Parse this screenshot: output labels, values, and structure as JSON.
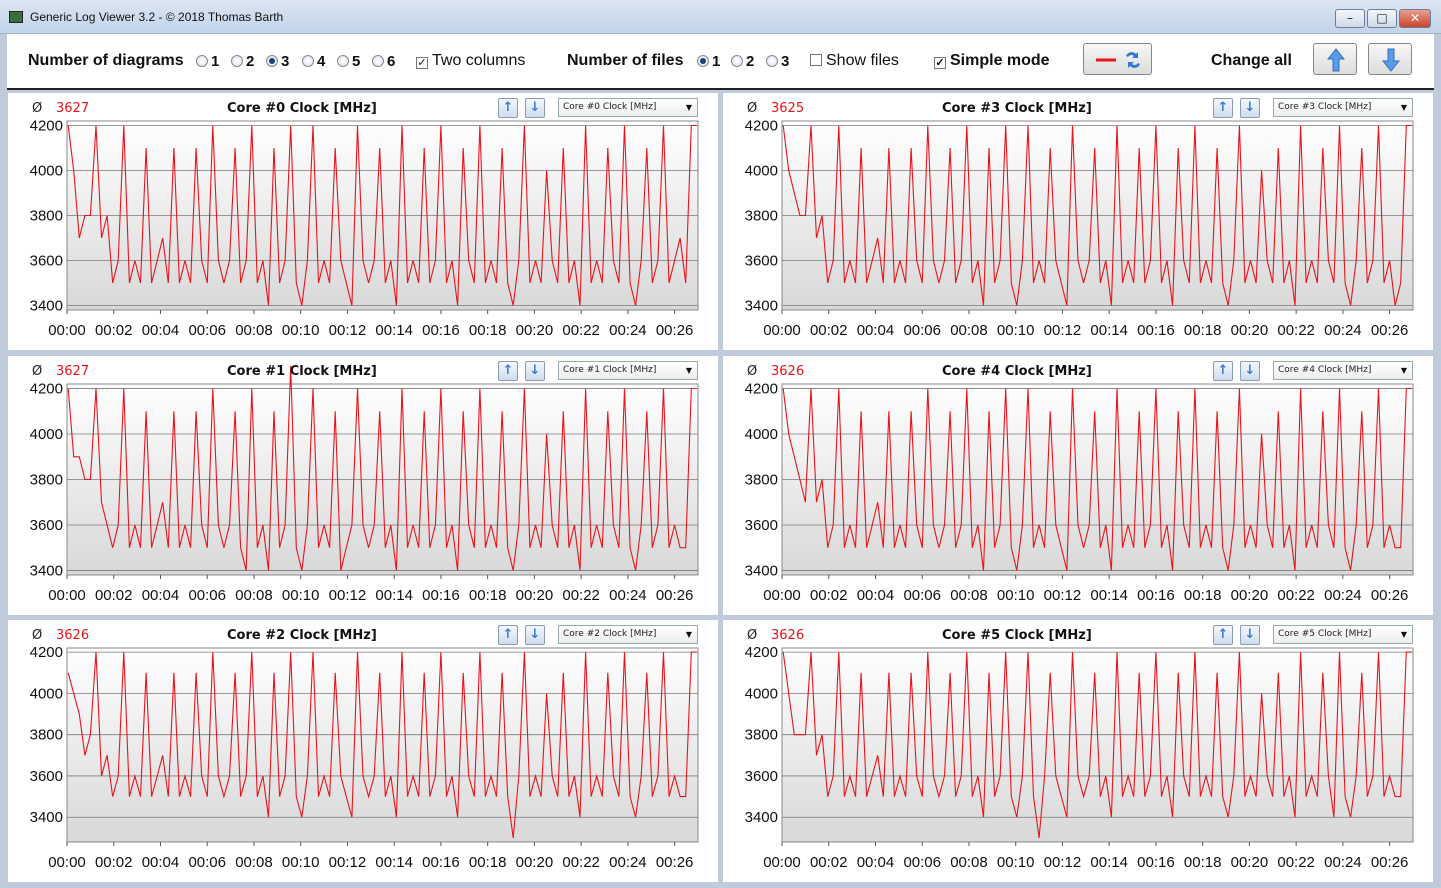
{
  "window": {
    "title": "Generic Log Viewer 3.2 - © 2018 Thomas Barth",
    "minimize_label": "–",
    "maximize_label": "□",
    "close_label": "✕"
  },
  "toolbar": {
    "diagrams_label": "Number of diagrams",
    "diagram_options": [
      "1",
      "2",
      "3",
      "4",
      "5",
      "6"
    ],
    "diagram_selected": "3",
    "two_columns_label": "Two columns",
    "two_columns_checked": true,
    "files_label": "Number of files",
    "file_options": [
      "1",
      "2",
      "3"
    ],
    "file_selected": "1",
    "show_files_label": "Show files",
    "show_files_checked": false,
    "simple_mode_label": "Simple mode",
    "simple_mode_checked": true,
    "change_all_label": "Change all",
    "up_icon": "arrow-up-icon",
    "down_icon": "arrow-down-icon"
  },
  "colors": {
    "line": "#e8141c",
    "avg": "#e8141c",
    "plot_bg_top": "#ffffff",
    "plot_bg_bottom": "#d8d8d8",
    "grid": "#7a7a7a",
    "frame": "#bfcbda"
  },
  "panels": [
    {
      "avg_symbol": "Ø",
      "avg": "3627",
      "title": "Core #0 Clock [MHz]",
      "select": "Core #0 Clock [MHz]"
    },
    {
      "avg_symbol": "Ø",
      "avg": "3625",
      "title": "Core #3 Clock [MHz]",
      "select": "Core #3 Clock [MHz]"
    },
    {
      "avg_symbol": "Ø",
      "avg": "3627",
      "title": "Core #1 Clock [MHz]",
      "select": "Core #1 Clock [MHz]"
    },
    {
      "avg_symbol": "Ø",
      "avg": "3626",
      "title": "Core #4 Clock [MHz]",
      "select": "Core #4 Clock [MHz]"
    },
    {
      "avg_symbol": "Ø",
      "avg": "3626",
      "title": "Core #2 Clock [MHz]",
      "select": "Core #2 Clock [MHz]"
    },
    {
      "avg_symbol": "Ø",
      "avg": "3626",
      "title": "Core #5 Clock [MHz]",
      "select": "Core #5 Clock [MHz]"
    }
  ],
  "chart_data": [
    {
      "type": "line",
      "title": "Core #0 Clock [MHz]",
      "x_ticks": [
        "00:00",
        "00:02",
        "00:04",
        "00:06",
        "00:08",
        "00:10",
        "00:12",
        "00:14",
        "00:16",
        "00:18",
        "00:20",
        "00:22",
        "00:24",
        "00:26"
      ],
      "y_ticks": [
        3400,
        3600,
        3800,
        4000,
        4200
      ],
      "xlim": [
        0,
        27
      ],
      "ylim": [
        3380,
        4220
      ],
      "grid": true,
      "series": [
        {
          "values": [
            4200,
            4000,
            3700,
            3800,
            3800,
            4200,
            3700,
            3800,
            3500,
            3600,
            4200,
            3500,
            3600,
            3500,
            4100,
            3500,
            3600,
            3700,
            3500,
            4100,
            3500,
            3600,
            3500,
            4100,
            3600,
            3500,
            4200,
            3600,
            3500,
            3600,
            4100,
            3500,
            3600,
            4200,
            3500,
            3600,
            3400,
            4100,
            3500,
            3600,
            4200,
            3500,
            3400,
            3600,
            4200,
            3500,
            3600,
            3500,
            4100,
            3600,
            3500,
            3400,
            4200,
            3600,
            3500,
            3600,
            4100,
            3500,
            3600,
            3400,
            4200,
            3500,
            3600,
            3500,
            4100,
            3500,
            3600,
            4200,
            3500,
            3600,
            3400,
            4100,
            3600,
            3500,
            4200,
            3500,
            3600,
            3500,
            4100,
            3500,
            3400,
            3600,
            4200,
            3500,
            3600,
            3500,
            4000,
            3600,
            3500,
            4100,
            3500,
            3600,
            3400,
            4200,
            3500,
            3600,
            3500,
            4100,
            3600,
            3500,
            4200,
            3500,
            3400,
            3600,
            4100,
            3500,
            3600,
            4200,
            3500,
            3600,
            3700,
            3500,
            4200,
            4200
          ]
        }
      ]
    },
    {
      "type": "line",
      "title": "Core #3 Clock [MHz]",
      "x_ticks": [
        "00:00",
        "00:02",
        "00:04",
        "00:06",
        "00:08",
        "00:10",
        "00:12",
        "00:14",
        "00:16",
        "00:18",
        "00:20",
        "00:22",
        "00:24",
        "00:26"
      ],
      "y_ticks": [
        3400,
        3600,
        3800,
        4000,
        4200
      ],
      "xlim": [
        0,
        27
      ],
      "ylim": [
        3380,
        4220
      ],
      "grid": true,
      "series": [
        {
          "values": [
            4200,
            4000,
            3900,
            3800,
            3800,
            4200,
            3700,
            3800,
            3500,
            3600,
            4200,
            3500,
            3600,
            3500,
            4100,
            3500,
            3600,
            3700,
            3500,
            4100,
            3500,
            3600,
            3500,
            4100,
            3600,
            3500,
            4200,
            3600,
            3500,
            3600,
            4100,
            3500,
            3600,
            4200,
            3500,
            3600,
            3400,
            4100,
            3500,
            3600,
            4200,
            3500,
            3400,
            3600,
            4200,
            3500,
            3600,
            3500,
            4100,
            3600,
            3500,
            3400,
            4200,
            3600,
            3500,
            3600,
            4100,
            3500,
            3600,
            3400,
            4200,
            3500,
            3600,
            3500,
            4100,
            3500,
            3600,
            4200,
            3500,
            3600,
            3400,
            4100,
            3600,
            3500,
            4200,
            3500,
            3600,
            3500,
            4100,
            3500,
            3400,
            3600,
            4200,
            3500,
            3600,
            3500,
            4000,
            3600,
            3500,
            4100,
            3500,
            3600,
            3400,
            4200,
            3500,
            3600,
            3500,
            4100,
            3600,
            3500,
            4200,
            3500,
            3400,
            3600,
            4100,
            3500,
            3600,
            4200,
            3500,
            3600,
            3400,
            3500,
            4200,
            4200
          ]
        }
      ]
    },
    {
      "type": "line",
      "title": "Core #1 Clock [MHz]",
      "x_ticks": [
        "00:00",
        "00:02",
        "00:04",
        "00:06",
        "00:08",
        "00:10",
        "00:12",
        "00:14",
        "00:16",
        "00:18",
        "00:20",
        "00:22",
        "00:24",
        "00:26"
      ],
      "y_ticks": [
        3400,
        3600,
        3800,
        4000,
        4200
      ],
      "xlim": [
        0,
        27
      ],
      "ylim": [
        3380,
        4220
      ],
      "grid": true,
      "series": [
        {
          "values": [
            4200,
            3900,
            3900,
            3800,
            3800,
            4200,
            3700,
            3600,
            3500,
            3600,
            4200,
            3500,
            3600,
            3500,
            4100,
            3500,
            3600,
            3700,
            3500,
            4100,
            3500,
            3600,
            3500,
            4100,
            3600,
            3500,
            4200,
            3600,
            3500,
            3600,
            4100,
            3500,
            3400,
            4200,
            3500,
            3600,
            3400,
            4100,
            3500,
            3600,
            4300,
            3500,
            3400,
            3600,
            4200,
            3500,
            3600,
            3500,
            4100,
            3400,
            3500,
            3600,
            4200,
            3600,
            3500,
            3600,
            4100,
            3500,
            3600,
            3400,
            4200,
            3500,
            3600,
            3500,
            4100,
            3500,
            3600,
            4200,
            3500,
            3600,
            3400,
            4100,
            3600,
            3500,
            4200,
            3500,
            3600,
            3500,
            4100,
            3500,
            3400,
            3600,
            4200,
            3500,
            3600,
            3500,
            4000,
            3600,
            3500,
            4100,
            3500,
            3600,
            3400,
            4200,
            3500,
            3600,
            3500,
            4100,
            3600,
            3500,
            4200,
            3500,
            3400,
            3600,
            4100,
            3500,
            3600,
            4200,
            3500,
            3600,
            3500,
            3500,
            4200,
            4200
          ]
        }
      ]
    },
    {
      "type": "line",
      "title": "Core #4 Clock [MHz]",
      "x_ticks": [
        "00:00",
        "00:02",
        "00:04",
        "00:06",
        "00:08",
        "00:10",
        "00:12",
        "00:14",
        "00:16",
        "00:18",
        "00:20",
        "00:22",
        "00:24",
        "00:26"
      ],
      "y_ticks": [
        3400,
        3600,
        3800,
        4000,
        4200
      ],
      "xlim": [
        0,
        27
      ],
      "ylim": [
        3380,
        4220
      ],
      "grid": true,
      "series": [
        {
          "values": [
            4200,
            4000,
            3900,
            3800,
            3700,
            4200,
            3700,
            3800,
            3500,
            3600,
            4200,
            3500,
            3600,
            3500,
            4100,
            3500,
            3600,
            3700,
            3500,
            4100,
            3500,
            3600,
            3500,
            4100,
            3600,
            3500,
            4200,
            3600,
            3500,
            3600,
            4100,
            3500,
            3600,
            4200,
            3500,
            3600,
            3400,
            4100,
            3500,
            3600,
            4200,
            3500,
            3400,
            3600,
            4200,
            3500,
            3600,
            3500,
            4100,
            3600,
            3500,
            3400,
            4200,
            3600,
            3500,
            3600,
            4100,
            3500,
            3600,
            3400,
            4200,
            3500,
            3600,
            3500,
            4100,
            3500,
            3600,
            4200,
            3500,
            3600,
            3400,
            4100,
            3600,
            3500,
            4200,
            3500,
            3600,
            3500,
            4100,
            3500,
            3400,
            3600,
            4200,
            3500,
            3600,
            3500,
            4000,
            3600,
            3500,
            4100,
            3500,
            3600,
            3400,
            4200,
            3500,
            3600,
            3500,
            4100,
            3600,
            3500,
            4200,
            3500,
            3400,
            3600,
            4100,
            3500,
            3600,
            4200,
            3500,
            3600,
            3500,
            3500,
            4200,
            4200
          ]
        }
      ]
    },
    {
      "type": "line",
      "title": "Core #2 Clock [MHz]",
      "x_ticks": [
        "00:00",
        "00:02",
        "00:04",
        "00:06",
        "00:08",
        "00:10",
        "00:12",
        "00:14",
        "00:16",
        "00:18",
        "00:20",
        "00:22",
        "00:24",
        "00:26"
      ],
      "y_ticks": [
        3400,
        3600,
        3800,
        4000,
        4200
      ],
      "xlim": [
        0,
        27
      ],
      "ylim": [
        3280,
        4220
      ],
      "grid": true,
      "series": [
        {
          "values": [
            4100,
            4000,
            3900,
            3700,
            3800,
            4200,
            3600,
            3700,
            3500,
            3600,
            4200,
            3500,
            3600,
            3500,
            4100,
            3500,
            3600,
            3700,
            3500,
            4100,
            3500,
            3600,
            3500,
            4100,
            3600,
            3500,
            4200,
            3600,
            3500,
            3600,
            4100,
            3500,
            3600,
            4200,
            3500,
            3600,
            3400,
            4100,
            3500,
            3600,
            4200,
            3500,
            3400,
            3600,
            4200,
            3500,
            3600,
            3500,
            4100,
            3600,
            3500,
            3400,
            4200,
            3600,
            3500,
            3600,
            4100,
            3500,
            3600,
            3400,
            4200,
            3500,
            3600,
            3500,
            4100,
            3500,
            3600,
            4200,
            3500,
            3600,
            3400,
            4100,
            3600,
            3500,
            4200,
            3500,
            3600,
            3500,
            4100,
            3500,
            3300,
            3600,
            4200,
            3500,
            3600,
            3500,
            4000,
            3600,
            3500,
            4100,
            3500,
            3600,
            3400,
            4200,
            3500,
            3600,
            3500,
            4100,
            3600,
            3500,
            4200,
            3500,
            3400,
            3600,
            4100,
            3500,
            3600,
            4200,
            3500,
            3600,
            3500,
            3500,
            4200,
            4200
          ]
        }
      ]
    },
    {
      "type": "line",
      "title": "Core #5 Clock [MHz]",
      "x_ticks": [
        "00:00",
        "00:02",
        "00:04",
        "00:06",
        "00:08",
        "00:10",
        "00:12",
        "00:14",
        "00:16",
        "00:18",
        "00:20",
        "00:22",
        "00:24",
        "00:26"
      ],
      "y_ticks": [
        3400,
        3600,
        3800,
        4000,
        4200
      ],
      "xlim": [
        0,
        27
      ],
      "ylim": [
        3280,
        4220
      ],
      "grid": true,
      "series": [
        {
          "values": [
            4200,
            4000,
            3800,
            3800,
            3800,
            4200,
            3700,
            3800,
            3500,
            3600,
            4200,
            3500,
            3600,
            3500,
            4100,
            3500,
            3600,
            3700,
            3500,
            4100,
            3500,
            3600,
            3500,
            4100,
            3600,
            3500,
            4200,
            3600,
            3500,
            3600,
            4100,
            3500,
            3600,
            4200,
            3500,
            3600,
            3400,
            4100,
            3500,
            3600,
            4200,
            3500,
            3400,
            3600,
            4200,
            3500,
            3300,
            3600,
            4100,
            3600,
            3500,
            3400,
            4200,
            3600,
            3500,
            3600,
            4100,
            3500,
            3600,
            3400,
            4200,
            3500,
            3600,
            3500,
            4100,
            3500,
            3600,
            4200,
            3500,
            3600,
            3400,
            4100,
            3600,
            3500,
            4200,
            3500,
            3600,
            3500,
            4100,
            3500,
            3400,
            3600,
            4200,
            3500,
            3600,
            3500,
            4000,
            3600,
            3500,
            4100,
            3500,
            3600,
            3400,
            4200,
            3500,
            3600,
            3500,
            4100,
            3600,
            3400,
            4200,
            3500,
            3400,
            3600,
            4100,
            3500,
            3600,
            4200,
            3500,
            3600,
            3500,
            3500,
            4200,
            4200
          ]
        }
      ]
    }
  ]
}
